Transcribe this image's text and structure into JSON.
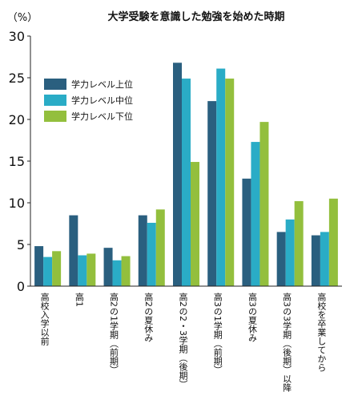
{
  "chart_data": {
    "type": "bar",
    "title": "大学受験を意識した勉強を始めた時期",
    "unit_label": "（%）",
    "ylim": [
      0,
      30
    ],
    "yticks": [
      "0",
      "5",
      "10",
      "15",
      "20",
      "25",
      "30"
    ],
    "categories": [
      "高校入学以前",
      "高1",
      "高2の1学期（前期）",
      "高2の夏休み",
      "高2の2・3学期（後期）",
      "高3の1学期（前期）",
      "高3の夏休み",
      "高3の3学期（後期）以降",
      "高校を卒業してから"
    ],
    "series": [
      {
        "name": "学力レベル上位",
        "values": [
          4.8,
          8.5,
          4.6,
          8.5,
          26.8,
          22.2,
          12.9,
          6.5,
          6.1
        ],
        "color": "#2a5f7f"
      },
      {
        "name": "学力レベル中位",
        "values": [
          3.5,
          3.7,
          3.1,
          7.6,
          24.9,
          26.1,
          17.3,
          8.0,
          6.5
        ],
        "color": "#2aacc6"
      },
      {
        "name": "学力レベル下位",
        "values": [
          4.2,
          3.9,
          3.6,
          9.2,
          14.9,
          24.9,
          19.7,
          10.2,
          10.5
        ],
        "color": "#93bf3d"
      }
    ],
    "legend_position": "top-left",
    "grid": false
  }
}
